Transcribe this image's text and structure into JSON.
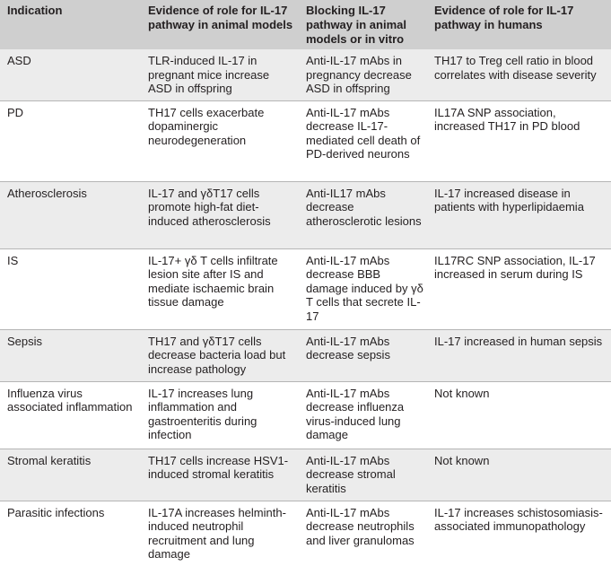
{
  "headers": [
    "Indication",
    "Evidence of role for IL-17 pathway in animal models",
    "Blocking IL-17 pathway in animal models or in vitro",
    "Evidence of role for IL-17 pathway in humans"
  ],
  "rows": [
    {
      "indication": "ASD",
      "animal": "TLR-induced IL-17 in pregnant mice increase ASD in offspring",
      "blocking": "Anti-IL-17 mAbs in pregnancy decrease ASD in offspring",
      "human": "TH17 to Treg cell ratio in blood correlates with disease severity"
    },
    {
      "indication": "PD",
      "animal": "TH17 cells exacerbate dopaminergic neurodegeneration",
      "blocking": "Anti-IL-17 mAbs decrease IL-17-mediated cell death of PD-derived neurons",
      "human": "IL17A SNP association, increased TH17 in PD blood"
    },
    {
      "indication": "Atherosclerosis",
      "animal": "IL-17 and γδT17 cells promote high-fat diet-induced atherosclerosis",
      "blocking": "Anti-IL17 mAbs decrease atherosclerotic lesions",
      "human": "IL-17 increased disease in patients with hyperlipidaemia"
    },
    {
      "indication": "IS",
      "animal": "IL-17+ γδ T cells infiltrate lesion site after IS and mediate ischaemic brain tissue damage",
      "blocking": "Anti-IL-17 mAbs decrease BBB damage induced by γδ T cells that secrete IL-17",
      "human": "IL17RC SNP association, IL-17 increased in serum during IS"
    },
    {
      "indication": "Sepsis",
      "animal": "TH17 and γδT17 cells decrease bacteria load but increase pathology",
      "blocking": "Anti-IL-17 mAbs decrease sepsis",
      "human": "IL-17 increased in human sepsis"
    },
    {
      "indication": "Influenza virus associated inflammation",
      "animal": "IL-17 increases lung inflammation and gastroenteritis during infection",
      "blocking": "Anti-IL-17 mAbs decrease influenza virus-induced lung damage",
      "human": "Not known"
    },
    {
      "indication": "Stromal keratitis",
      "animal": "TH17 cells increase HSV1-induced stromal keratitis",
      "blocking": "Anti-IL-17 mAbs decrease stromal keratitis",
      "human": "Not known"
    },
    {
      "indication": "Parasitic infections",
      "animal": "IL-17A increases helminth-induced neutrophil recruitment and lung damage",
      "blocking": "Anti-IL-17 mAbs decrease neutrophils and liver granulomas",
      "human": "IL-17 increases schistosomiasis-associated immunopathology"
    }
  ]
}
